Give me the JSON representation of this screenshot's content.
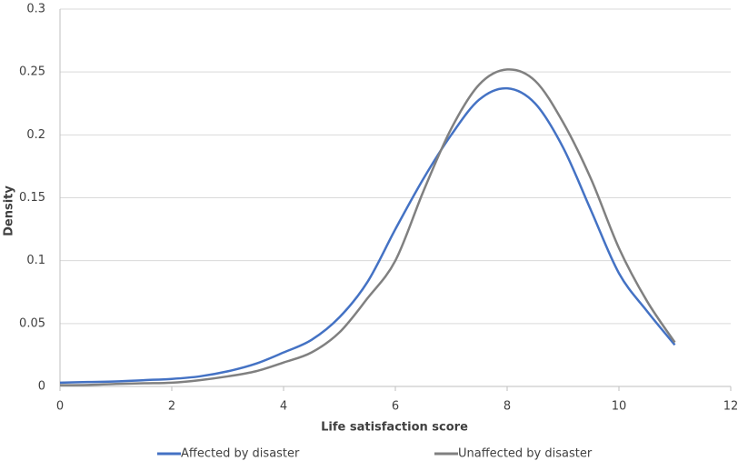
{
  "chart_data": {
    "type": "line",
    "x_label": "Life satisfaction score",
    "y_label": "Density",
    "x": [
      0,
      0.5,
      1,
      1.5,
      2,
      2.5,
      3,
      3.5,
      4,
      4.5,
      5,
      5.5,
      6,
      6.5,
      7,
      7.5,
      8,
      8.5,
      9,
      9.5,
      10,
      10.5,
      11
    ],
    "series": [
      {
        "name": "Affected by disaster",
        "color": "#4472c4",
        "values": [
          0.003,
          0.0035,
          0.004,
          0.005,
          0.006,
          0.008,
          0.012,
          0.018,
          0.027,
          0.037,
          0.055,
          0.083,
          0.125,
          0.165,
          0.2,
          0.228,
          0.237,
          0.225,
          0.19,
          0.14,
          0.09,
          0.06,
          0.033
        ]
      },
      {
        "name": "Unaffected by disaster",
        "color": "#808080",
        "values": [
          0.001,
          0.0012,
          0.002,
          0.0025,
          0.003,
          0.005,
          0.008,
          0.012,
          0.019,
          0.027,
          0.043,
          0.07,
          0.1,
          0.155,
          0.205,
          0.24,
          0.252,
          0.243,
          0.21,
          0.165,
          0.11,
          0.068,
          0.035
        ]
      }
    ],
    "xlim": [
      0,
      12
    ],
    "xticks": [
      0,
      2,
      4,
      6,
      8,
      10,
      12
    ],
    "ylim": [
      0,
      0.3
    ],
    "yticks": [
      0,
      0.05,
      0.1,
      0.15,
      0.2,
      0.25,
      0.3
    ],
    "grid": true,
    "legend": "bottom"
  }
}
